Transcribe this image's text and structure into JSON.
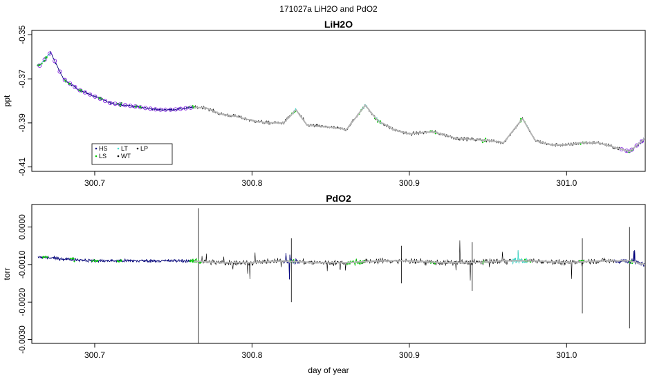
{
  "figure": {
    "title": "171027a   LiH2O and PdO2",
    "xlabel": "day of year"
  },
  "legend": {
    "entries": [
      {
        "label": "HS",
        "color": "#000080"
      },
      {
        "label": "LT",
        "color": "#40e0d0"
      },
      {
        "label": "LP",
        "color": "#000000"
      },
      {
        "label": "LS",
        "color": "#00cc00"
      },
      {
        "label": "WT",
        "color": "#000000"
      }
    ]
  },
  "chart_data": [
    {
      "type": "line",
      "title": "LiH2O",
      "ylabel": "ppt",
      "xlabel": "",
      "xlim": [
        300.66,
        301.05
      ],
      "ylim": [
        -0.412,
        -0.348
      ],
      "xticks": [
        "300.7",
        "300.8",
        "300.9",
        "301.0"
      ],
      "xtick_values": [
        300.7,
        300.8,
        300.9,
        301.0
      ],
      "yticks": [
        "-0.35",
        "-0.37",
        "-0.39",
        "-0.41"
      ],
      "ytick_values": [
        -0.35,
        -0.37,
        -0.39,
        -0.41
      ],
      "smoothed_trend": {
        "x": [
          300.665,
          300.672,
          300.68,
          300.69,
          300.7,
          300.71,
          300.72,
          300.73,
          300.74,
          300.75,
          300.762,
          300.77,
          300.78,
          300.79,
          300.8,
          300.81,
          300.82,
          300.828,
          300.835,
          300.85,
          300.86,
          300.872,
          300.88,
          300.89,
          300.9,
          300.915,
          300.93,
          300.95,
          300.96,
          300.972,
          300.98,
          300.99,
          301.0,
          301.01,
          301.02,
          301.03,
          301.04,
          301.05
        ],
        "y": [
          -0.364,
          -0.358,
          -0.37,
          -0.375,
          -0.378,
          -0.381,
          -0.382,
          -0.383,
          -0.384,
          -0.384,
          -0.383,
          -0.383,
          -0.386,
          -0.387,
          -0.389,
          -0.39,
          -0.39,
          -0.384,
          -0.391,
          -0.392,
          -0.393,
          -0.382,
          -0.389,
          -0.393,
          -0.395,
          -0.394,
          -0.397,
          -0.398,
          -0.399,
          -0.388,
          -0.398,
          -0.4,
          -0.4,
          -0.399,
          -0.399,
          -0.401,
          -0.403,
          -0.397
        ]
      }
    },
    {
      "type": "line",
      "title": "PdO2",
      "ylabel": "torr",
      "xlabel": "day of year",
      "xlim": [
        300.66,
        301.05
      ],
      "ylim": [
        -0.0031,
        0.0006
      ],
      "xticks": [
        "300.7",
        "300.8",
        "300.9",
        "301.0"
      ],
      "xtick_values": [
        300.7,
        300.8,
        300.9,
        301.0
      ],
      "yticks": [
        "0.0000",
        "-0.0010",
        "-0.0020",
        "-0.0030"
      ],
      "ytick_values": [
        0.0,
        -0.001,
        -0.002,
        -0.003
      ],
      "smoothed_trend": {
        "x": [
          300.665,
          300.68,
          300.7,
          300.72,
          300.74,
          300.76,
          300.78,
          300.8,
          300.82,
          300.84,
          300.86,
          300.88,
          300.9,
          300.92,
          300.94,
          300.96,
          300.98,
          301.0,
          301.02,
          301.04,
          301.05
        ],
        "y": [
          -0.0008,
          -0.00085,
          -0.0009,
          -0.0009,
          -0.0009,
          -0.0009,
          -0.00095,
          -0.00095,
          -0.0009,
          -0.00095,
          -0.00095,
          -0.0009,
          -0.0009,
          -0.00095,
          -0.00095,
          -0.0009,
          -0.0009,
          -0.00095,
          -0.0009,
          -0.0009,
          -0.001
        ]
      }
    }
  ]
}
